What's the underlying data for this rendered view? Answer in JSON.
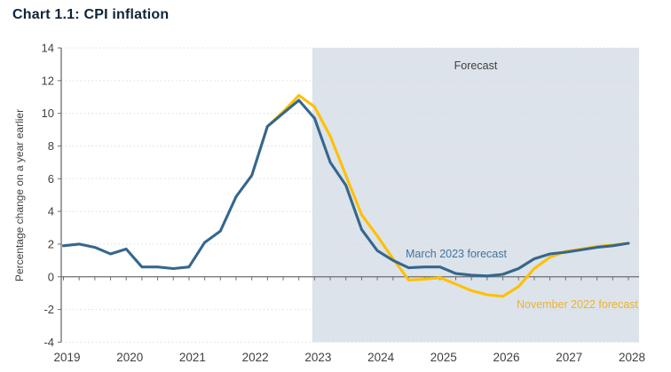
{
  "page": {
    "title": "Chart 1.1: CPI inflation"
  },
  "chart_data": {
    "type": "line",
    "title": "Chart 1.1: CPI inflation",
    "xlabel": "",
    "ylabel": "Percentage change on a year earlier",
    "ylim": [
      -4,
      14
    ],
    "ytick_step": 2,
    "ytick_labels": [
      "14",
      "12",
      "10",
      "8",
      "6",
      "4",
      "2",
      "0",
      "-2",
      "-4"
    ],
    "x_year_labels": [
      "2019",
      "2020",
      "2021",
      "2022",
      "2023",
      "2024",
      "2025",
      "2026",
      "2027",
      "2028"
    ],
    "x_frequency": "quarterly",
    "grid": "horizontal-dotted",
    "legend_position": "in-plot-labels",
    "forecast_region": {
      "label": "Forecast",
      "start_quarter_index": 16,
      "start_period": "2023Q1",
      "fill_color": "#dce3ea"
    },
    "series": [
      {
        "name": "November 2022 forecast",
        "color": "#ffc000",
        "start_quarter_index": 13,
        "start_period": "2022Q2",
        "values": [
          9.2,
          10.1,
          11.1,
          10.4,
          8.6,
          6.2,
          3.8,
          2.5,
          1.1,
          -0.2,
          -0.15,
          -0.05,
          -0.45,
          -0.85,
          -1.1,
          -1.2,
          -0.6,
          0.5,
          1.2,
          1.55,
          1.7,
          1.85,
          1.95,
          2.05
        ]
      },
      {
        "name": "March 2023 forecast",
        "color": "#35678d",
        "start_quarter_index": 0,
        "start_period": "2019Q1",
        "values": [
          1.9,
          2.0,
          1.8,
          1.4,
          1.7,
          0.6,
          0.6,
          0.5,
          0.6,
          2.1,
          2.8,
          4.9,
          6.2,
          9.2,
          10.0,
          10.8,
          9.7,
          7.0,
          5.6,
          2.9,
          1.6,
          1.0,
          0.55,
          0.6,
          0.6,
          0.2,
          0.1,
          0.05,
          0.15,
          0.5,
          1.1,
          1.4,
          1.5,
          1.65,
          1.8,
          1.9,
          2.05
        ]
      }
    ],
    "annotations": [
      {
        "id": "forecast-label",
        "text": "Forecast",
        "color": "#404040"
      },
      {
        "id": "march-label",
        "text": "March 2023 forecast",
        "color": "#44749c"
      },
      {
        "id": "november-label",
        "text": "November 2022 forecast",
        "color": "#edb22e"
      }
    ]
  },
  "colors": {
    "background": "#ffffff",
    "title_text": "#0f2437",
    "axis_line": "#6e6e6e",
    "tick_text": "#404040",
    "gridline": "#dcdcdc",
    "forecast_shading": "#dce3ea",
    "march_2023_line": "#35678d",
    "november_2022_line": "#ffc000"
  }
}
